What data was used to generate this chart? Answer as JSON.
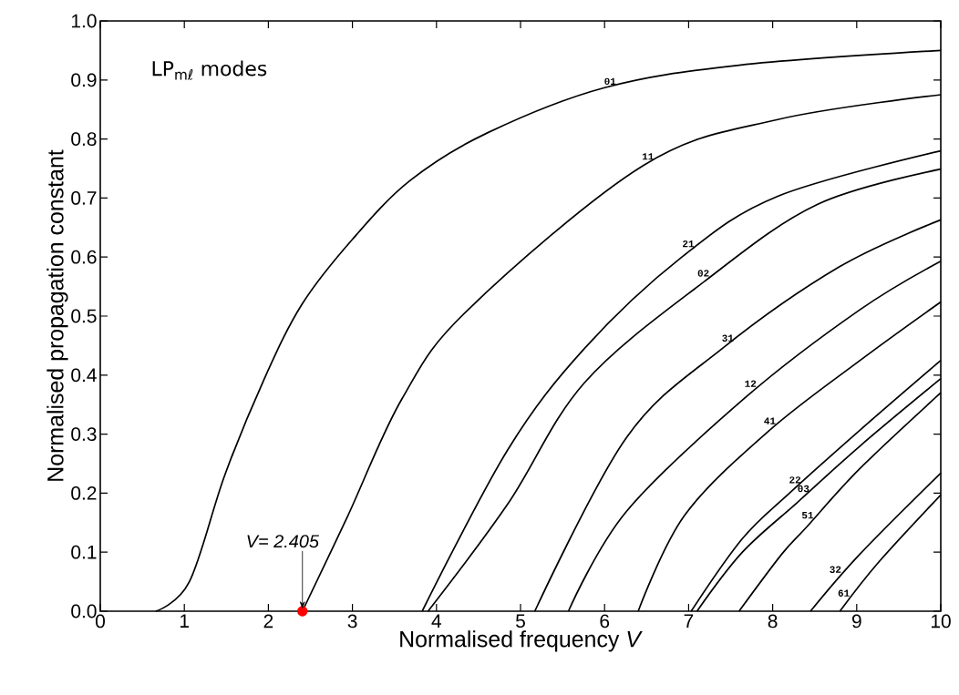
{
  "chart_data": {
    "type": "line",
    "xlabel": "Normalised frequency *V*",
    "ylabel": "Normalised propagation constant",
    "xlim": [
      0,
      10
    ],
    "ylim": [
      0,
      1
    ],
    "xticks": [
      0,
      1,
      2,
      3,
      4,
      5,
      6,
      7,
      8,
      9,
      10
    ],
    "yticks": [
      {
        "value": 0,
        "label": "0.0"
      },
      0.1,
      0.2,
      0.3,
      0.4,
      0.5,
      0.6,
      0.7,
      0.8,
      0.9,
      {
        "value": 1,
        "label": "1.0"
      }
    ],
    "grid": false,
    "marker": "none",
    "line_style": "solid",
    "series": [
      {
        "color": "#000000",
        "x": [
          0.66,
          1.06,
          1.48,
          1.94,
          2.4,
          3.0,
          3.69,
          4.6,
          6.0,
          7.6,
          10
        ],
        "values": [
          0,
          0.05,
          0.23,
          0.39,
          0.52,
          0.63,
          0.73,
          0.81,
          0.887,
          0.925,
          0.95
        ]
      },
      {
        "color": "#000000",
        "x": [
          2.405,
          2.94,
          3.59,
          4.37,
          6.46,
          8.06,
          10
        ],
        "values": [
          0,
          0.16,
          0.36,
          0.51,
          0.755,
          0.833,
          0.875
        ]
      },
      {
        "color": "#000000",
        "x": [
          3.83,
          4.85,
          5.76,
          6.92,
          8.06,
          10
        ],
        "values": [
          0,
          0.274,
          0.445,
          0.6,
          0.703,
          0.78
        ]
      },
      {
        "color": "#000000",
        "x": [
          3.9,
          4.85,
          5.76,
          7.2,
          8.53,
          10
        ],
        "values": [
          0,
          0.182,
          0.387,
          0.56,
          0.689,
          0.749
        ]
      },
      {
        "color": "#000000",
        "x": [
          5.17,
          6.26,
          7.4,
          8.8,
          10
        ],
        "values": [
          0,
          0.294,
          0.445,
          0.584,
          0.663
        ]
      },
      {
        "color": "#000000",
        "x": [
          5.57,
          6.26,
          7.7,
          9.04,
          10
        ],
        "values": [
          0,
          0.169,
          0.365,
          0.511,
          0.593
        ]
      },
      {
        "color": "#000000",
        "x": [
          6.4,
          6.95,
          7.95,
          9.04,
          10
        ],
        "values": [
          0,
          0.162,
          0.305,
          0.425,
          0.524
        ]
      },
      {
        "color": "#000000",
        "x": [
          7.03,
          7.64,
          8.2,
          9.04,
          10
        ],
        "values": [
          0,
          0.123,
          0.2,
          0.307,
          0.425
        ]
      },
      {
        "color": "#000000",
        "x": [
          7.1,
          7.64,
          8.3,
          9.04,
          10
        ],
        "values": [
          0,
          0.1,
          0.185,
          0.28,
          0.394
        ]
      },
      {
        "color": "#000000",
        "x": [
          7.6,
          8.11,
          8.4,
          9.04,
          10
        ],
        "values": [
          0,
          0.097,
          0.142,
          0.242,
          0.37
        ]
      },
      {
        "color": "#000000",
        "x": [
          8.45,
          9.04,
          10
        ],
        "values": [
          0,
          0.097,
          0.234
        ]
      },
      {
        "color": "#000000",
        "x": [
          8.8,
          9.26,
          10
        ],
        "values": [
          0,
          0.083,
          0.197
        ]
      },
      {
        "type": "scatter",
        "marker": "circle",
        "color": "#ff0000",
        "x": [
          2.405
        ],
        "values": [
          0
        ]
      }
    ],
    "annotations": [
      "LP$_{mℓ}$ modes",
      {
        "text": "01",
        "x": 6.15,
        "y": 0.89
      },
      {
        "text": "11",
        "x": 6.6,
        "y": 0.763
      },
      {
        "text": "21",
        "x": 7.08,
        "y": 0.615
      },
      {
        "text": "02",
        "x": 7.26,
        "y": 0.565
      },
      {
        "text": "31",
        "x": 7.55,
        "y": 0.455
      },
      {
        "text": "12",
        "x": 7.82,
        "y": 0.378
      },
      {
        "text": "41",
        "x": 8.05,
        "y": 0.315
      },
      {
        "text": "22",
        "x": 8.35,
        "y": 0.215
      },
      {
        "text": "03",
        "x": 8.45,
        "y": 0.2
      },
      {
        "text": "51",
        "x": 8.5,
        "y": 0.155
      },
      {
        "text": "32",
        "x": 8.83,
        "y": 0.063
      },
      {
        "text": "61",
        "x": 8.93,
        "y": 0.023
      },
      {
        "text": "V= 2.405",
        "x": 2.405,
        "y": 0
      }
    ]
  }
}
